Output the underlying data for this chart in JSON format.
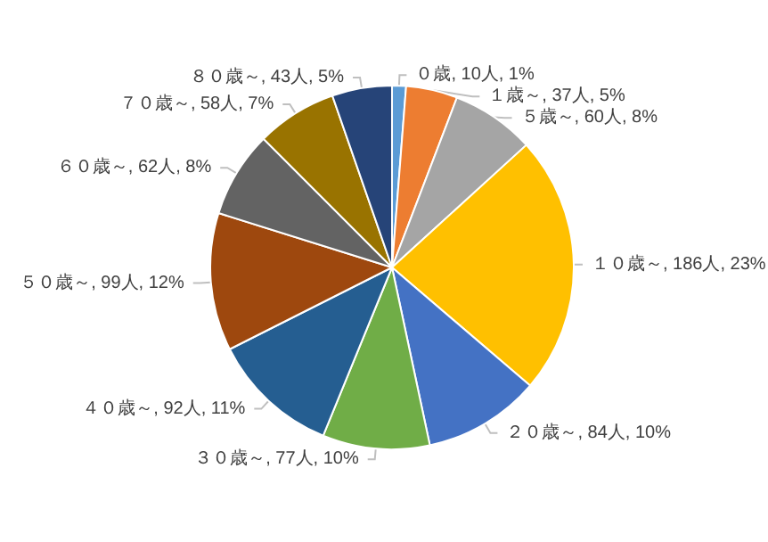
{
  "chart_data": {
    "type": "pie",
    "categories": [
      "０歳",
      "１歳～",
      "５歳～",
      "１０歳～",
      "２０歳～",
      "３０歳～",
      "４０歳～",
      "５０歳～",
      "６０歳～",
      "７０歳～",
      "８０歳～"
    ],
    "values": [
      10,
      37,
      60,
      186,
      84,
      77,
      92,
      99,
      62,
      58,
      43
    ],
    "value_labels": [
      "10人, 1%",
      "37人, 5%",
      "60人, 8%",
      "186人, 23%",
      "84人, 10%",
      "77人, 10%",
      "92人, 11%",
      "99人, 12%",
      "62人, 8%",
      "58人, 7%",
      "43人, 5%"
    ],
    "colors": [
      "#5b9bd5",
      "#ed7d31",
      "#a5a5a5",
      "#ffc000",
      "#4472c4",
      "#70ad47",
      "#255e91",
      "#9e480e",
      "#636363",
      "#997300",
      "#264478"
    ],
    "legend": false
  }
}
